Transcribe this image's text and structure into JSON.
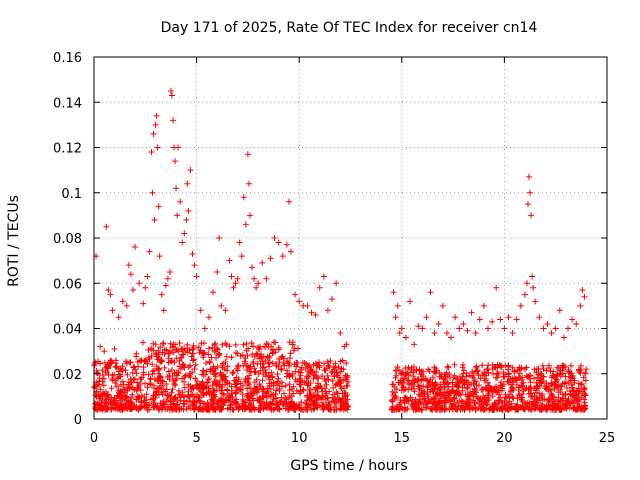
{
  "chart_data": {
    "type": "scatter",
    "title": "Day 171 of 2025, Rate Of TEC Index for receiver cn14",
    "xlabel": "GPS time / hours",
    "ylabel": "ROTI / TECUs",
    "xlim": [
      0,
      25
    ],
    "ylim": [
      0,
      0.16
    ],
    "xticks": [
      0,
      5,
      10,
      15,
      20,
      25
    ],
    "xtick_labels": [
      "0",
      "5",
      "10",
      "15",
      "20",
      "25"
    ],
    "yticks": [
      0,
      0.02,
      0.04,
      0.06,
      0.08,
      0.1,
      0.12,
      0.14,
      0.16
    ],
    "ytick_labels": [
      "0",
      "0.02",
      "0.04",
      "0.06",
      "0.08",
      "0.1",
      "0.12",
      "0.14",
      "0.16"
    ],
    "grid": true,
    "marker": "+",
    "color": "#ff0000",
    "data_gap_hours": [
      12.4,
      14.5
    ],
    "series": [
      {
        "name": "ROTI",
        "points": [
          [
            0.1,
            0.072
          ],
          [
            0.3,
            0.032
          ],
          [
            0.5,
            0.03
          ],
          [
            0.6,
            0.085
          ],
          [
            0.7,
            0.057
          ],
          [
            0.8,
            0.055
          ],
          [
            0.9,
            0.048
          ],
          [
            1.0,
            0.031
          ],
          [
            1.2,
            0.045
          ],
          [
            1.4,
            0.052
          ],
          [
            1.6,
            0.05
          ],
          [
            1.7,
            0.068
          ],
          [
            1.8,
            0.064
          ],
          [
            1.9,
            0.057
          ],
          [
            2.0,
            0.076
          ],
          [
            2.2,
            0.06
          ],
          [
            2.4,
            0.051
          ],
          [
            2.5,
            0.058
          ],
          [
            2.6,
            0.063
          ],
          [
            2.7,
            0.074
          ],
          [
            2.8,
            0.118
          ],
          [
            2.85,
            0.1
          ],
          [
            2.9,
            0.126
          ],
          [
            2.95,
            0.088
          ],
          [
            3.0,
            0.13
          ],
          [
            3.05,
            0.134
          ],
          [
            3.1,
            0.12
          ],
          [
            3.15,
            0.094
          ],
          [
            3.2,
            0.072
          ],
          [
            3.3,
            0.055
          ],
          [
            3.4,
            0.048
          ],
          [
            3.5,
            0.059
          ],
          [
            3.6,
            0.062
          ],
          [
            3.7,
            0.065
          ],
          [
            3.75,
            0.145
          ],
          [
            3.8,
            0.143
          ],
          [
            3.85,
            0.132
          ],
          [
            3.9,
            0.12
          ],
          [
            3.95,
            0.114
          ],
          [
            4.0,
            0.102
          ],
          [
            4.05,
            0.09
          ],
          [
            4.1,
            0.12
          ],
          [
            4.2,
            0.096
          ],
          [
            4.3,
            0.078
          ],
          [
            4.4,
            0.082
          ],
          [
            4.5,
            0.088
          ],
          [
            4.55,
            0.104
          ],
          [
            4.6,
            0.092
          ],
          [
            4.7,
            0.11
          ],
          [
            4.8,
            0.073
          ],
          [
            4.9,
            0.068
          ],
          [
            5.0,
            0.063
          ],
          [
            5.2,
            0.048
          ],
          [
            5.4,
            0.04
          ],
          [
            5.6,
            0.045
          ],
          [
            5.8,
            0.056
          ],
          [
            6.0,
            0.065
          ],
          [
            6.1,
            0.08
          ],
          [
            6.2,
            0.05
          ],
          [
            6.4,
            0.048
          ],
          [
            6.6,
            0.07
          ],
          [
            6.7,
            0.063
          ],
          [
            6.8,
            0.058
          ],
          [
            6.9,
            0.06
          ],
          [
            7.0,
            0.062
          ],
          [
            7.1,
            0.078
          ],
          [
            7.2,
            0.072
          ],
          [
            7.3,
            0.098
          ],
          [
            7.4,
            0.086
          ],
          [
            7.5,
            0.117
          ],
          [
            7.55,
            0.104
          ],
          [
            7.6,
            0.09
          ],
          [
            7.7,
            0.067
          ],
          [
            7.8,
            0.062
          ],
          [
            7.9,
            0.058
          ],
          [
            8.0,
            0.06
          ],
          [
            8.2,
            0.069
          ],
          [
            8.4,
            0.062
          ],
          [
            8.6,
            0.071
          ],
          [
            8.8,
            0.08
          ],
          [
            9.0,
            0.078
          ],
          [
            9.2,
            0.072
          ],
          [
            9.4,
            0.077
          ],
          [
            9.5,
            0.096
          ],
          [
            9.6,
            0.074
          ],
          [
            9.8,
            0.055
          ],
          [
            10.0,
            0.052
          ],
          [
            10.2,
            0.05
          ],
          [
            10.4,
            0.05
          ],
          [
            10.6,
            0.047
          ],
          [
            10.8,
            0.046
          ],
          [
            11.0,
            0.058
          ],
          [
            11.2,
            0.063
          ],
          [
            11.4,
            0.048
          ],
          [
            11.6,
            0.053
          ],
          [
            11.8,
            0.06
          ],
          [
            12.0,
            0.038
          ],
          [
            12.2,
            0.032
          ],
          [
            12.3,
            0.033
          ],
          [
            14.6,
            0.056
          ],
          [
            14.7,
            0.045
          ],
          [
            14.8,
            0.05
          ],
          [
            14.9,
            0.038
          ],
          [
            15.0,
            0.04
          ],
          [
            15.2,
            0.036
          ],
          [
            15.4,
            0.052
          ],
          [
            15.6,
            0.033
          ],
          [
            15.8,
            0.041
          ],
          [
            16.0,
            0.04
          ],
          [
            16.2,
            0.045
          ],
          [
            16.4,
            0.056
          ],
          [
            16.6,
            0.038
          ],
          [
            16.8,
            0.042
          ],
          [
            17.0,
            0.05
          ],
          [
            17.2,
            0.038
          ],
          [
            17.4,
            0.036
          ],
          [
            17.6,
            0.045
          ],
          [
            17.8,
            0.04
          ],
          [
            18.0,
            0.042
          ],
          [
            18.2,
            0.039
          ],
          [
            18.4,
            0.047
          ],
          [
            18.6,
            0.038
          ],
          [
            18.8,
            0.044
          ],
          [
            19.0,
            0.05
          ],
          [
            19.2,
            0.04
          ],
          [
            19.4,
            0.043
          ],
          [
            19.6,
            0.058
          ],
          [
            19.8,
            0.044
          ],
          [
            20.0,
            0.04
          ],
          [
            20.2,
            0.045
          ],
          [
            20.4,
            0.038
          ],
          [
            20.6,
            0.044
          ],
          [
            20.8,
            0.05
          ],
          [
            21.0,
            0.055
          ],
          [
            21.1,
            0.06
          ],
          [
            21.15,
            0.095
          ],
          [
            21.2,
            0.107
          ],
          [
            21.25,
            0.1
          ],
          [
            21.3,
            0.09
          ],
          [
            21.35,
            0.063
          ],
          [
            21.4,
            0.058
          ],
          [
            21.5,
            0.052
          ],
          [
            21.7,
            0.045
          ],
          [
            21.9,
            0.04
          ],
          [
            22.1,
            0.042
          ],
          [
            22.3,
            0.038
          ],
          [
            22.5,
            0.04
          ],
          [
            22.7,
            0.048
          ],
          [
            22.9,
            0.036
          ],
          [
            23.1,
            0.04
          ],
          [
            23.3,
            0.044
          ],
          [
            23.5,
            0.042
          ],
          [
            23.7,
            0.05
          ],
          [
            23.8,
            0.057
          ],
          [
            23.9,
            0.054
          ]
        ]
      }
    ]
  }
}
